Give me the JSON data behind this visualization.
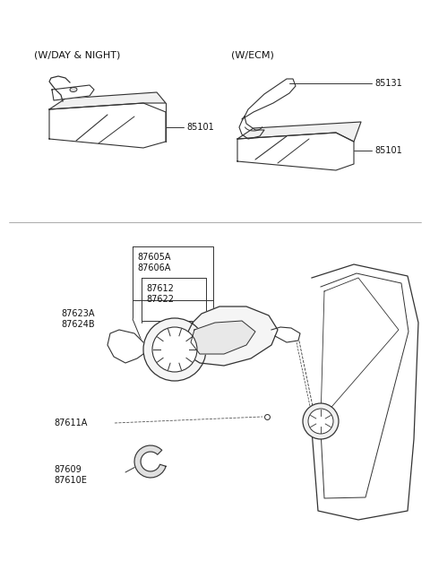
{
  "background_color": "#ffffff",
  "line_color": "#333333",
  "text_color": "#111111",
  "font_size_label": 7.0,
  "font_size_header": 8.0,
  "labels": {
    "w_day_night": "(W/DAY & NIGHT)",
    "w_ecm": "(W/ECM)",
    "85101_left": "85101",
    "85101_right": "85101",
    "85131": "85131",
    "87605A": "87605A",
    "87606A": "87606A",
    "87612": "87612",
    "87622": "87622",
    "87623A": "87623A",
    "87624B": "87624B",
    "87611A": "87611A",
    "87609": "87609",
    "87610E": "87610E"
  }
}
